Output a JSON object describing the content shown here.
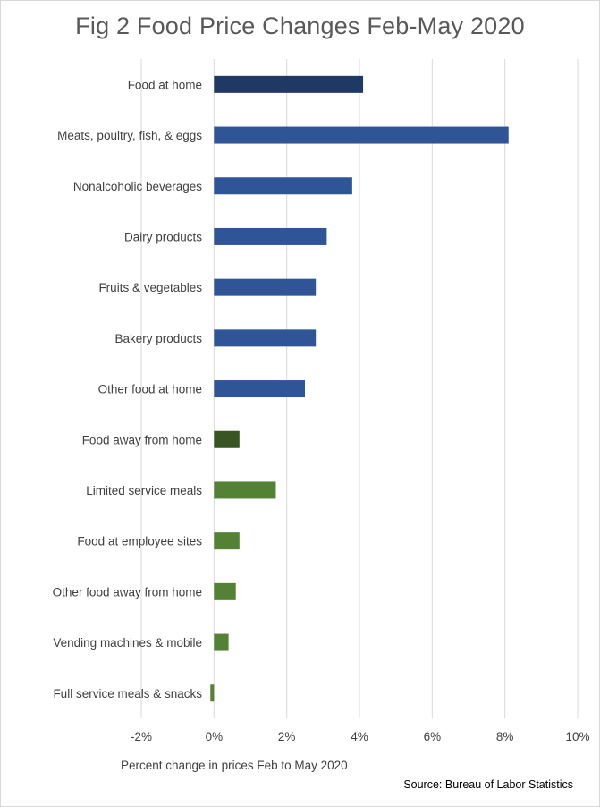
{
  "chart_data": {
    "type": "bar",
    "orientation": "horizontal",
    "title": "Fig 2 Food Price Changes Feb-May 2020",
    "xlabel": "Percent change in prices Feb to May 2020",
    "ylabel": "",
    "source": "Source: Bureau of Labor Statistics",
    "xlim": [
      -2,
      10
    ],
    "xticks": [
      -2,
      0,
      2,
      4,
      6,
      8,
      10
    ],
    "xtick_labels": [
      "-2%",
      "0%",
      "2%",
      "4%",
      "6%",
      "8%",
      "10%"
    ],
    "grid": true,
    "legend": "none",
    "categories": [
      "Food at home",
      "Meats, poultry, fish, & eggs",
      "Nonalcoholic beverages",
      "Dairy products",
      "Fruits & vegetables",
      "Bakery products",
      "Other food at home",
      "Food away from home",
      "Limited service meals",
      "Food at employee sites",
      "Other food away from home",
      "Vending machines & mobile",
      "Full service meals & snacks"
    ],
    "values": [
      4.1,
      8.1,
      3.8,
      3.1,
      2.8,
      2.8,
      2.5,
      0.7,
      1.7,
      0.7,
      0.6,
      0.4,
      -0.1
    ],
    "bar_colors": [
      "#1f3864",
      "#2f5597",
      "#2f5597",
      "#2f5597",
      "#2f5597",
      "#2f5597",
      "#2f5597",
      "#375623",
      "#548235",
      "#548235",
      "#548235",
      "#548235",
      "#548235"
    ]
  }
}
